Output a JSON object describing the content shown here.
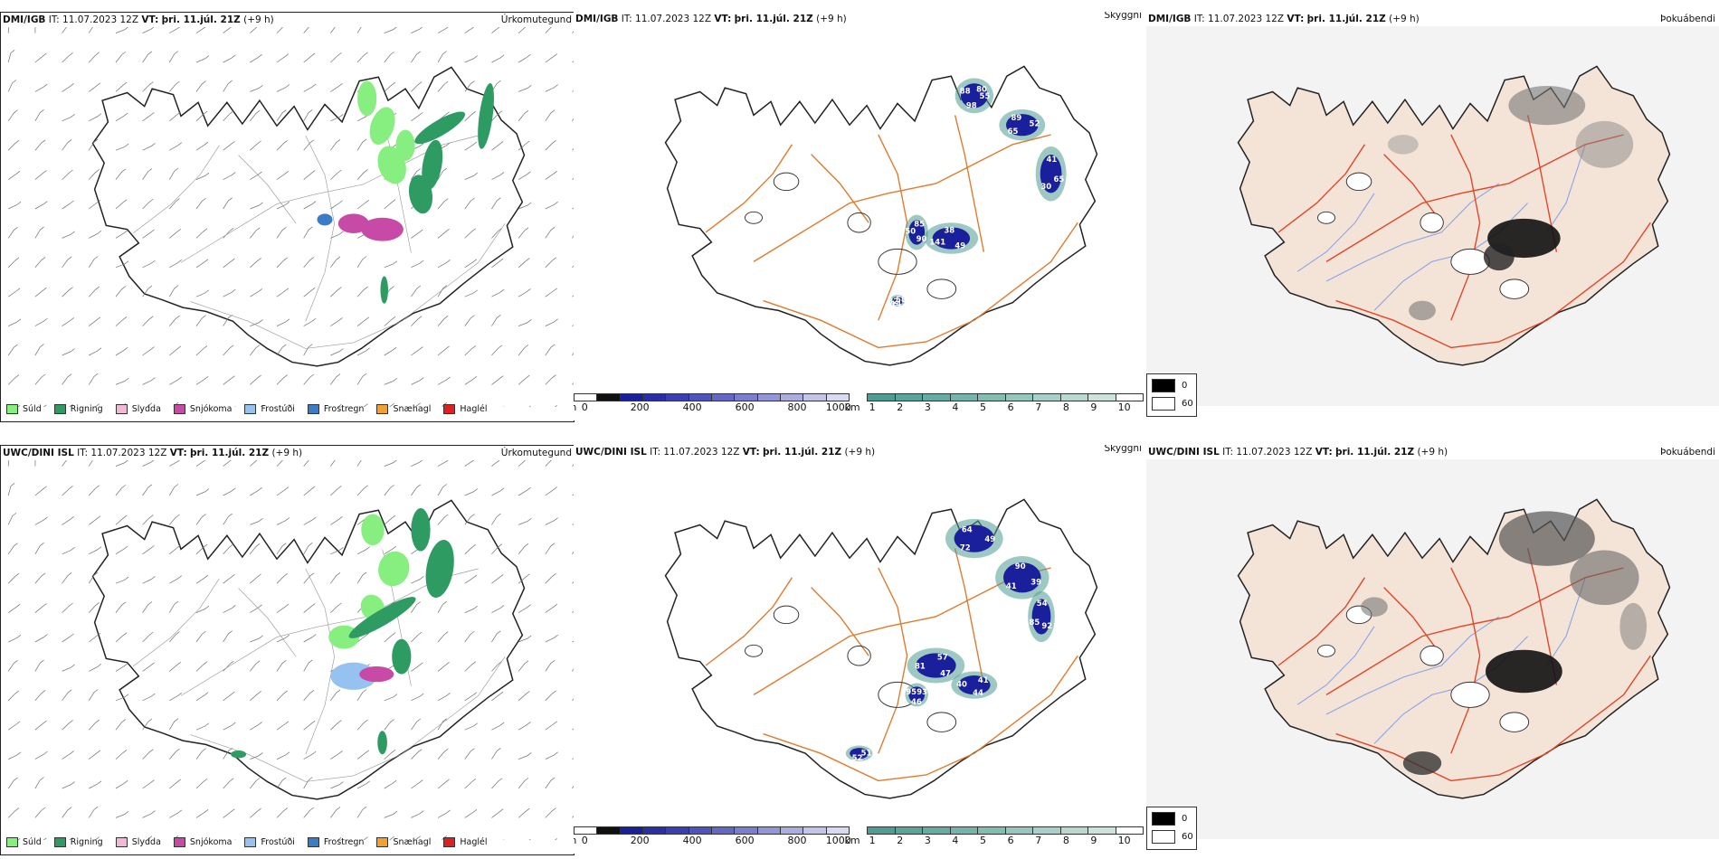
{
  "colors": {
    "sea": "#ffffff",
    "coast": "#222222",
    "land_fog": "#f4e3d7",
    "roads": "#e07a2c",
    "rivers": "#8aa3e8",
    "fog_roads": "#e2452a",
    "drizzle": "#86ef80",
    "rain": "#2e9c62",
    "sleet": "#f2b8d6",
    "snow": "#c64aa6",
    "freezing_drizzle": "#96c2f2",
    "freezing_rain": "#3a7cc6",
    "snow_pellets": "#f2a030",
    "hail": "#e02020",
    "cloud_base_low": "#1a1f9c",
    "visibility_low": "#4e9c92"
  },
  "panels": [
    {
      "model": "DMI/IGB",
      "it_label": "IT:",
      "it_value": "11.07.2023 12Z",
      "vt_label": "VT:",
      "vt_value": "þri. 11.júl. 21Z",
      "lead": "(+9 h)",
      "field": "Úrkomutegund"
    },
    {
      "model": "DMI/IGB",
      "it_label": "IT:",
      "it_value": "11.07.2023 12Z",
      "vt_label": "VT:",
      "vt_value": "þri. 11.júl. 21Z",
      "lead": "(+9 h)",
      "field": "Skyggni"
    },
    {
      "model": "DMI/IGB",
      "it_label": "IT:",
      "it_value": "11.07.2023 12Z",
      "vt_label": "VT:",
      "vt_value": "þri. 11.júl. 21Z",
      "lead": "(+9 h)",
      "field": "Þokuábendi"
    },
    {
      "model": "UWC/DINI ISL",
      "it_label": "IT:",
      "it_value": "11.07.2023 12Z",
      "vt_label": "VT:",
      "vt_value": "þri. 11.júl. 21Z",
      "lead": "(+9 h)",
      "field": "Úrkomutegund"
    },
    {
      "model": "UWC/DINI ISL",
      "it_label": "IT:",
      "it_value": "11.07.2023 12Z",
      "vt_label": "VT:",
      "vt_value": "þri. 11.júl. 21Z",
      "lead": "(+9 h)",
      "field": "Skyggni"
    },
    {
      "model": "UWC/DINI ISL",
      "it_label": "IT:",
      "it_value": "11.07.2023 12Z",
      "vt_label": "VT:",
      "vt_value": "þri. 11.júl. 21Z",
      "lead": "(+9 h)",
      "field": "Þokuábendi"
    }
  ],
  "precip_legend": [
    "Súld",
    "Rigning",
    "Slydda",
    "Snjókoma",
    "Frostúði",
    "Frostregn",
    "Snæhagl",
    "Haglél"
  ],
  "cloud_base_bar": {
    "unit": "m",
    "ticks": [
      "0",
      "200",
      "400",
      "600",
      "800",
      "1000"
    ]
  },
  "visibility_bar": {
    "unit": "km",
    "ticks": [
      "1",
      "2",
      "3",
      "4",
      "5",
      "6",
      "7",
      "8",
      "9",
      "10"
    ]
  },
  "fog_legend": [
    "0",
    "60"
  ],
  "cloud_base_labels_top": [
    "55",
    "65",
    "41",
    "49",
    "50",
    "58",
    "98",
    "89",
    "65",
    "141",
    "85",
    "142",
    "88",
    "52",
    "30",
    "38",
    "90",
    "32",
    "80"
  ],
  "cloud_base_labels_bottom": [
    "49",
    "41",
    "54",
    "47",
    "40",
    "93",
    "52",
    "64",
    "39",
    "85",
    "57",
    "44",
    "95",
    "51",
    "72",
    "90",
    "92",
    "81",
    "41",
    "46"
  ]
}
